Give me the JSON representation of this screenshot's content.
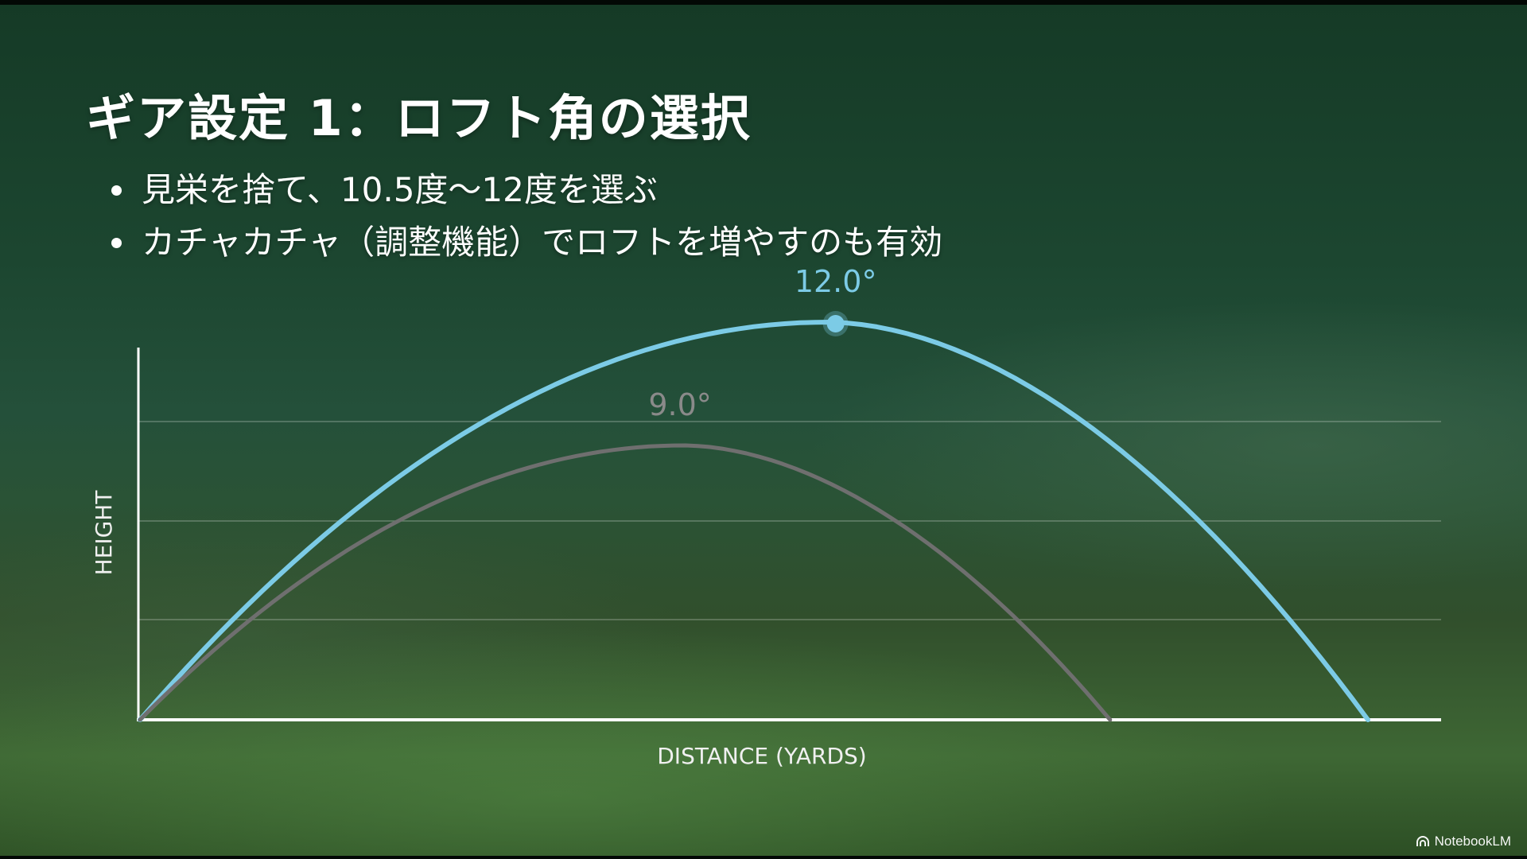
{
  "slide": {
    "title": "ギア設定 1：ロフト角の選択",
    "bullets": [
      "見栄を捨て、10.5度〜12度を選ぶ",
      "カチャカチャ（調整機能）でロフトを増やすのも有効"
    ]
  },
  "chart_data": {
    "type": "line",
    "xlabel": "DISTANCE (YARDS)",
    "ylabel": "HEIGHT",
    "grid": true,
    "series": [
      {
        "name": "12.0°",
        "color": "#7ccbe6",
        "landing": 1.0,
        "apex": 1.0,
        "peak_marker": true
      },
      {
        "name": "9.0°",
        "color": "#6f6f6f",
        "landing": 0.79,
        "apex": 0.69,
        "peak_marker": false
      }
    ]
  },
  "brand": {
    "label": "NotebookLM",
    "icon": "notebooklm-logo-icon"
  },
  "colors": {
    "accent": "#7ccbe6",
    "secondary": "#6f6f6f",
    "axis": "#ffffff"
  }
}
